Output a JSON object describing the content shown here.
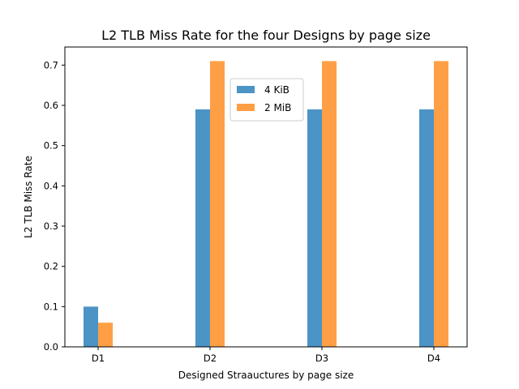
{
  "chart_data": {
    "type": "bar",
    "title": "L2 TLB Miss Rate for the four Designs by page size",
    "xlabel": "Designed Straauctures by page size",
    "ylabel": "L2 TLB Miss Rate",
    "categories": [
      "D1",
      "D2",
      "D3",
      "D4"
    ],
    "series": [
      {
        "name": "4 KiB",
        "values": [
          0.1,
          0.59,
          0.59,
          0.59
        ],
        "color": "#4c93c6"
      },
      {
        "name": "2 MiB",
        "values": [
          0.06,
          0.71,
          0.71,
          0.71
        ],
        "color": "#ff9f45"
      }
    ],
    "ylim": [
      0,
      0.745
    ],
    "yticks": [
      0.0,
      0.1,
      0.2,
      0.3,
      0.4,
      0.5,
      0.6,
      0.7
    ],
    "ytick_labels": [
      "0.0",
      "0.1",
      "0.2",
      "0.3",
      "0.4",
      "0.5",
      "0.6",
      "0.7"
    ],
    "grid": false,
    "legend_position": "upper-center"
  }
}
